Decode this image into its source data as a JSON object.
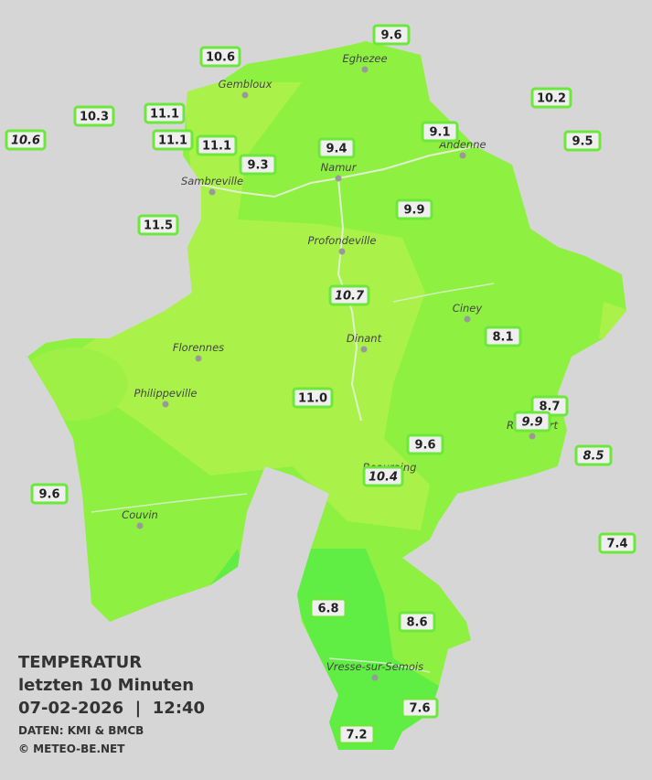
{
  "legend": {
    "title": "TEMPERATUR",
    "period": "letzten 10 Minuten",
    "datetime": "07-02-2026  |  12:40",
    "source": "DATEN: KMI & BMCB",
    "copyright": "© METEO-BE.NET"
  },
  "towns": [
    "Eghezee",
    "Gembloux",
    "Andenne",
    "Namur",
    "Sambreville",
    "Profondeville",
    "Ciney",
    "Dinant",
    "Florennes",
    "Philippeville",
    "Rochefort",
    "Beauraing",
    "Couvin",
    "Vresse-sur-Semois"
  ],
  "stations": [
    {
      "value": "9.6"
    },
    {
      "value": "10.6"
    },
    {
      "value": "10.2"
    },
    {
      "value": "10.3"
    },
    {
      "value": "11.1"
    },
    {
      "value": "10.6",
      "italic": true
    },
    {
      "value": "9.1"
    },
    {
      "value": "9.5"
    },
    {
      "value": "11.1"
    },
    {
      "value": "11.1"
    },
    {
      "value": "9.4"
    },
    {
      "value": "9.3"
    },
    {
      "value": "9.9"
    },
    {
      "value": "11.5"
    },
    {
      "value": "10.7",
      "italic": true
    },
    {
      "value": "8.1"
    },
    {
      "value": "8.7"
    },
    {
      "value": "11.0"
    },
    {
      "value": "9.9",
      "italic": true
    },
    {
      "value": "9.6"
    },
    {
      "value": "8.5",
      "italic": true
    },
    {
      "value": "10.4",
      "italic": true
    },
    {
      "value": "9.6"
    },
    {
      "value": "7.4"
    },
    {
      "value": "6.8"
    },
    {
      "value": "8.6"
    },
    {
      "value": "7.6"
    },
    {
      "value": "7.2"
    }
  ]
}
